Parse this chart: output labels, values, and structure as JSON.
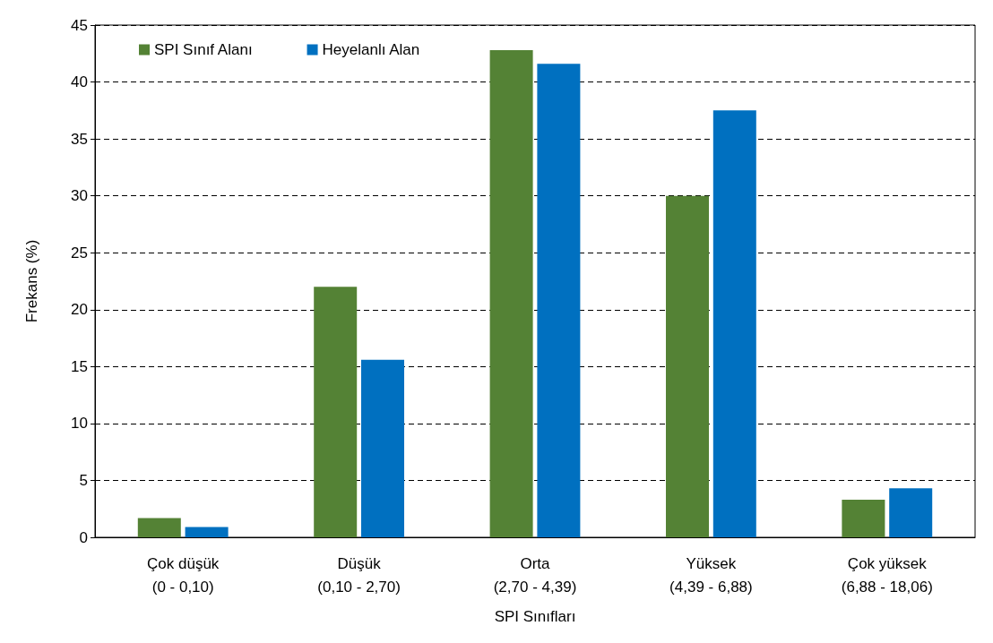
{
  "chart_data": {
    "type": "bar",
    "xlabel": "SPI Sınıfları",
    "ylabel": "Frekans (%)",
    "categories": [
      "Çok düşük\n(0 - 0,10)",
      "Düşük\n(0,10 - 2,70)",
      "Orta\n(2,70 - 4,39)",
      "Yüksek\n(4,39 - 6,88)",
      "Çok yüksek\n(6,88 - 18,06)"
    ],
    "series": [
      {
        "name": "SPI Sınıf Alanı",
        "color": "#548235",
        "values": [
          1.7,
          22.0,
          42.8,
          30.0,
          3.3
        ]
      },
      {
        "name": "Heyelanlı Alan",
        "color": "#0070c0",
        "values": [
          0.9,
          15.6,
          41.6,
          37.5,
          4.3
        ]
      }
    ],
    "ylim": [
      0,
      45
    ],
    "yticks": [
      0,
      5,
      10,
      15,
      20,
      25,
      30,
      35,
      40,
      45
    ],
    "grid": "y",
    "legend": "top left"
  }
}
